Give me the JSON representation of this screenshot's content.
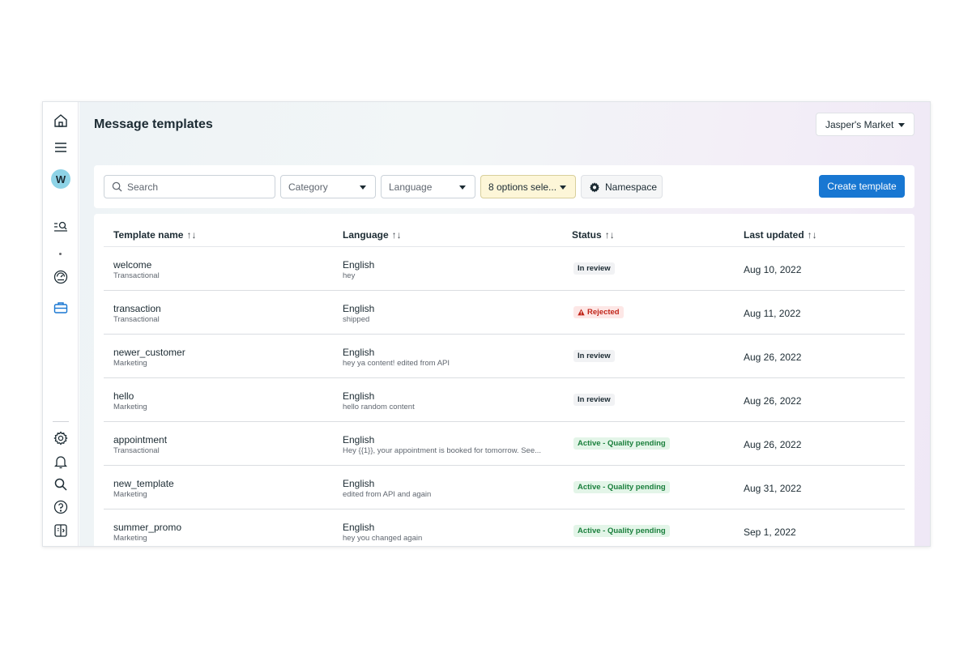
{
  "page": {
    "title": "Message templates"
  },
  "account": {
    "name": "Jasper's Market"
  },
  "rail": {
    "avatar_initial": "W",
    "top_icons": [
      "home-icon",
      "menu-icon",
      "search-list-icon",
      "dashboard-gauge-icon",
      "briefcase-icon"
    ],
    "bottom_icons": [
      "settings-gear-icon",
      "notifications-bell-icon",
      "search-icon",
      "help-icon",
      "panel-toggle-icon"
    ]
  },
  "toolbar": {
    "search_placeholder": "Search",
    "category_label": "Category",
    "language_label": "Language",
    "options_label": "8 options sele...",
    "namespace_label": "Namespace",
    "create_label": "Create template"
  },
  "table": {
    "columns": [
      {
        "label": "Template name",
        "sort": "↑↓"
      },
      {
        "label": "Language",
        "sort": "↑↓"
      },
      {
        "label": "Status",
        "sort": "↑↓"
      },
      {
        "label": "Last updated",
        "sort": "↑↓"
      }
    ],
    "rows": [
      {
        "name": "welcome",
        "category": "Transactional",
        "language": "English",
        "body": "hey",
        "status": "In review",
        "status_kind": "review",
        "updated": "Aug 10, 2022"
      },
      {
        "name": "transaction",
        "category": "Transactional",
        "language": "English",
        "body": "shipped",
        "status": "Rejected",
        "status_kind": "rejected",
        "updated": "Aug 11, 2022"
      },
      {
        "name": "newer_customer",
        "category": "Marketing",
        "language": "English",
        "body": "hey ya content! edited from API",
        "status": "In review",
        "status_kind": "review",
        "updated": "Aug 26, 2022"
      },
      {
        "name": "hello",
        "category": "Marketing",
        "language": "English",
        "body": "hello random content",
        "status": "In review",
        "status_kind": "review",
        "updated": "Aug 26, 2022"
      },
      {
        "name": "appointment",
        "category": "Transactional",
        "language": "English",
        "body": "Hey {{1}}, your appointment is booked for tomorrow. See...",
        "status": "Active - Quality pending",
        "status_kind": "active",
        "updated": "Aug 26, 2022"
      },
      {
        "name": "new_template",
        "category": "Marketing",
        "language": "English",
        "body": "edited from API and again",
        "status": "Active - Quality pending",
        "status_kind": "active",
        "updated": "Aug 31, 2022"
      },
      {
        "name": "summer_promo",
        "category": "Marketing",
        "language": "English",
        "body": "hey you changed again",
        "status": "Active - Quality pending",
        "status_kind": "active",
        "updated": "Sep 1, 2022"
      }
    ]
  },
  "colors": {
    "accent": "#1877d2",
    "avatar": "#8ed3e6",
    "rejected": "#c1261a",
    "active": "#1a7f3c"
  }
}
